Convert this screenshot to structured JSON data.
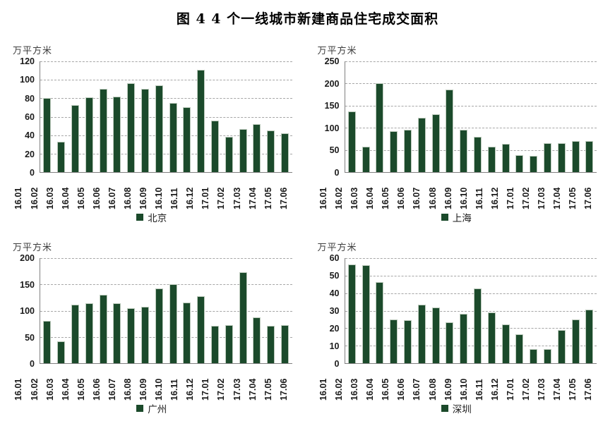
{
  "title": "图 4  4 个一线城市新建商品住宅成交面积",
  "colors": {
    "bar": "#1b4a2b",
    "bar_edge": "#bccabc",
    "gridline": "#a6a6a6",
    "axis": "#808080",
    "text": "#1a1a1a"
  },
  "chart_data": [
    {
      "type": "bar",
      "name": "北京",
      "ylabel": "万平方米",
      "ylim": [
        0,
        120
      ],
      "ytick_step": 20,
      "grid": true,
      "legend_position": "bottom",
      "categories": [
        "16.01",
        "16.02",
        "16.03",
        "16.04",
        "16.05",
        "16.06",
        "16.07",
        "16.08",
        "16.09",
        "16.10",
        "16.11",
        "16.12",
        "17.01",
        "17.02",
        "17.03",
        "17.04",
        "17.05",
        "17.06"
      ],
      "values": [
        80,
        33,
        73,
        81,
        90,
        82,
        96,
        90,
        94,
        75,
        70,
        111,
        56,
        38,
        47,
        52,
        45,
        42
      ]
    },
    {
      "type": "bar",
      "name": "上海",
      "ylabel": "万平方米",
      "ylim": [
        0,
        250
      ],
      "ytick_step": 50,
      "grid": true,
      "legend_position": "bottom",
      "categories": [
        "16.01",
        "16.02",
        "16.03",
        "16.04",
        "16.05",
        "16.06",
        "16.07",
        "16.08",
        "16.09",
        "16.10",
        "16.11",
        "16.12",
        "17.01",
        "17.02",
        "17.03",
        "17.04",
        "17.05",
        "17.06"
      ],
      "values": [
        137,
        58,
        201,
        93,
        96,
        123,
        130,
        187,
        96,
        79,
        58,
        64,
        39,
        37,
        65,
        65,
        70,
        70
      ]
    },
    {
      "type": "bar",
      "name": "广州",
      "ylabel": "万平方米",
      "ylim": [
        0,
        200
      ],
      "ytick_step": 50,
      "grid": true,
      "legend_position": "bottom",
      "categories": [
        "16.01",
        "16.02",
        "16.03",
        "16.04",
        "16.05",
        "16.06",
        "16.07",
        "16.08",
        "16.09",
        "16.10",
        "16.11",
        "16.12",
        "17.01",
        "17.02",
        "17.03",
        "17.04",
        "17.05",
        "17.06"
      ],
      "values": [
        80,
        42,
        112,
        114,
        130,
        114,
        105,
        107,
        142,
        151,
        116,
        127,
        71,
        73,
        173,
        87,
        71,
        73
      ]
    },
    {
      "type": "bar",
      "name": "深圳",
      "ylabel": "万平方米",
      "ylim": [
        0,
        60
      ],
      "ytick_step": 10,
      "grid": true,
      "legend_position": "bottom",
      "categories": [
        "16.01",
        "16.02",
        "16.03",
        "16.04",
        "16.05",
        "16.06",
        "16.07",
        "16.08",
        "16.09",
        "16.10",
        "16.11",
        "16.12",
        "17.01",
        "17.02",
        "17.03",
        "17.04",
        "17.05",
        "17.06"
      ],
      "values": [
        56.5,
        56,
        46.5,
        25,
        24.5,
        33.5,
        32,
        23.5,
        28,
        42.5,
        29,
        22,
        16.5,
        8,
        8,
        19,
        25,
        30.5
      ]
    }
  ]
}
